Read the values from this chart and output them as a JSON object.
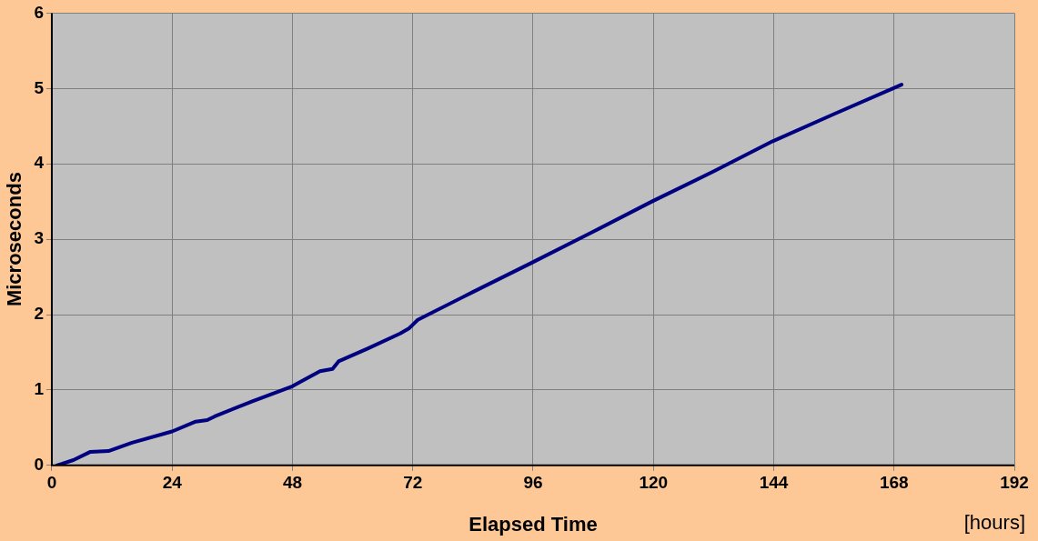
{
  "chart_data": {
    "type": "line",
    "xlabel": "Elapsed Time",
    "ylabel": "Microseconds",
    "annotations": [
      "[hours]"
    ],
    "x": [
      1,
      2,
      4.3,
      7.7,
      11.3,
      16,
      24,
      28.7,
      31,
      32.5,
      40,
      48,
      49.4,
      53.5,
      56,
      57.2,
      63,
      69.5,
      71.3,
      73,
      84,
      95.5,
      108,
      119.7,
      132,
      143.8,
      156,
      169.5
    ],
    "series": [
      {
        "color": "#000080",
        "values": [
          0,
          0.02,
          0.07,
          0.18,
          0.19,
          0.3,
          0.45,
          0.58,
          0.6,
          0.65,
          0.85,
          1.05,
          1.1,
          1.25,
          1.28,
          1.38,
          1.55,
          1.75,
          1.82,
          1.93,
          2.3,
          2.68,
          3.1,
          3.5,
          3.9,
          4.3,
          4.66,
          5.05
        ]
      }
    ],
    "xlim": [
      0,
      192
    ],
    "xticks": [
      0,
      24,
      48,
      72,
      96,
      120,
      144,
      168,
      192
    ],
    "ylim": [
      0,
      6
    ],
    "yticks": [
      0,
      1,
      2,
      3,
      4,
      5,
      6
    ],
    "grid": true,
    "legend": false,
    "marker": "none",
    "line_style": "solid"
  }
}
